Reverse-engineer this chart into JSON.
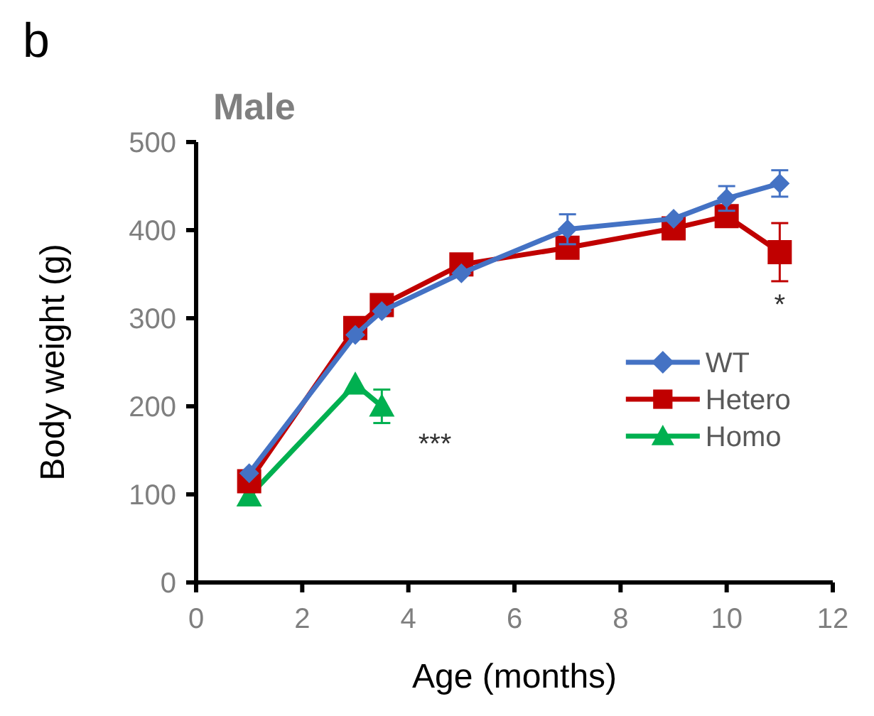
{
  "chart_data": {
    "type": "line",
    "title": "Male",
    "xlabel": "Age (months)",
    "ylabel": "Body weight (g)",
    "xlim": [
      0,
      12
    ],
    "xticks": [
      0,
      2,
      4,
      6,
      8,
      10,
      12
    ],
    "ylim": [
      0,
      500
    ],
    "yticks": [
      0,
      100,
      200,
      300,
      400,
      500
    ],
    "grid": false,
    "legend": "right",
    "series": [
      {
        "name": "WT",
        "color": "#4472c4",
        "marker": "diamond",
        "x": [
          1,
          3,
          3.5,
          5,
          7,
          9,
          10,
          11
        ],
        "values": [
          124,
          281,
          308,
          351,
          401,
          413,
          436,
          453
        ],
        "errors": [
          null,
          null,
          null,
          null,
          17,
          null,
          14,
          15
        ]
      },
      {
        "name": "Hetero",
        "color": "#c00000",
        "marker": "square",
        "x": [
          1,
          3,
          3.5,
          5,
          7,
          9,
          10,
          11
        ],
        "values": [
          115,
          289,
          315,
          361,
          380,
          402,
          416,
          375
        ],
        "errors": [
          null,
          null,
          null,
          null,
          null,
          null,
          null,
          33
        ]
      },
      {
        "name": "Homo",
        "color": "#00b050",
        "marker": "triangle",
        "x": [
          1,
          3,
          3.5
        ],
        "values": [
          98,
          225,
          200
        ],
        "errors": [
          null,
          null,
          19
        ]
      }
    ],
    "annotations": [
      "b",
      "***",
      "*"
    ]
  }
}
